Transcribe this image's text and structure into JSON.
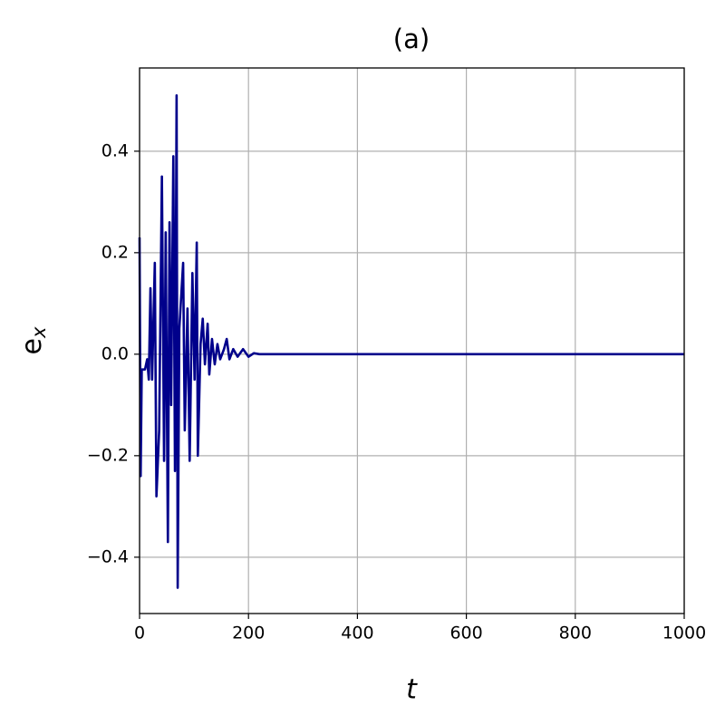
{
  "chart_data": {
    "type": "line",
    "title": "(a)",
    "xlabel": "t",
    "ylabel": {
      "text": "e",
      "subscript": "x"
    },
    "x": [
      0,
      2,
      4,
      10,
      14,
      17,
      20,
      23,
      28,
      31,
      36,
      41,
      45,
      48,
      52,
      55,
      58,
      62,
      65,
      68,
      70,
      73,
      80,
      83,
      88,
      92,
      97,
      101,
      105,
      107,
      112,
      116,
      120,
      125,
      128,
      133,
      138,
      143,
      148,
      155,
      160,
      165,
      172,
      180,
      190,
      200,
      210,
      220,
      1000
    ],
    "series": [
      {
        "color": "#00008b",
        "values": [
          0.23,
          -0.24,
          -0.03,
          -0.03,
          -0.01,
          -0.05,
          0.13,
          -0.05,
          0.18,
          -0.28,
          -0.15,
          0.35,
          -0.21,
          0.24,
          -0.37,
          0.26,
          -0.1,
          0.39,
          -0.23,
          0.51,
          -0.46,
          0.05,
          0.18,
          -0.15,
          0.09,
          -0.21,
          0.16,
          -0.05,
          0.22,
          -0.2,
          0.02,
          0.07,
          -0.02,
          0.06,
          -0.04,
          0.03,
          -0.02,
          0.02,
          -0.01,
          0.01,
          0.03,
          -0.01,
          0.01,
          -0.005,
          0.01,
          -0.005,
          0.002,
          0,
          0
        ]
      }
    ],
    "xlim": [
      0,
      1000
    ],
    "xticks": [
      0,
      200,
      400,
      600,
      800,
      1000
    ],
    "ylim": [
      -0.511,
      0.564
    ],
    "yticks": [
      {
        "value": -0.4,
        "label": "−0.4"
      },
      {
        "value": -0.2,
        "label": "−0.2"
      },
      {
        "value": 0,
        "label": "0.0"
      },
      0.2,
      0.4
    ],
    "grid": true
  }
}
